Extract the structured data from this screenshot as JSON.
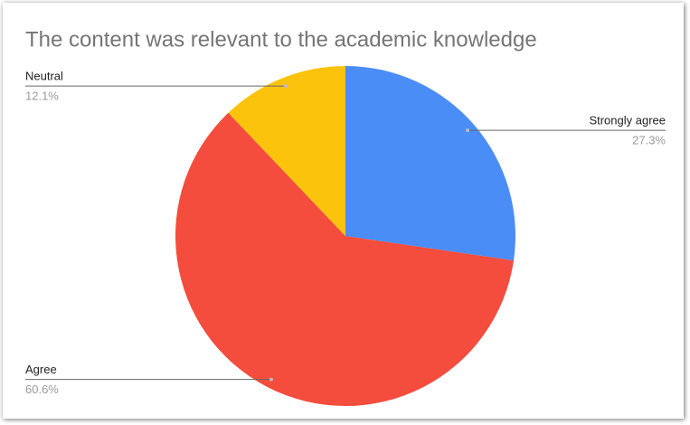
{
  "chart_data": {
    "type": "pie",
    "title": "The content was relevant to the academic knowledge",
    "categories": [
      "Strongly agree",
      "Agree",
      "Neutral"
    ],
    "values": [
      27.3,
      60.6,
      12.1
    ],
    "value_labels": [
      "27.3%",
      "60.6%",
      "12.1%"
    ],
    "colors": [
      "#4a8df6",
      "#f44c3d",
      "#fcc30c"
    ]
  }
}
